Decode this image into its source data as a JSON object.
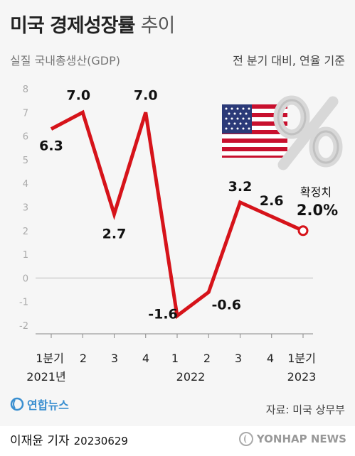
{
  "header": {
    "title_main": "미국 경제성장률",
    "title_sub": "추이",
    "subtitle_left": "실질 국내총생산(GDP)",
    "subtitle_right": "전 분기 대비, 연율 기준"
  },
  "chart_data": {
    "type": "line",
    "categories": [
      "1분기",
      "2",
      "3",
      "4",
      "1",
      "2",
      "3",
      "4",
      "1분기"
    ],
    "year_labels": [
      "2021년",
      "2022",
      "2023"
    ],
    "values": [
      6.3,
      7.0,
      2.7,
      7.0,
      -1.6,
      -0.6,
      3.2,
      2.6,
      2.0
    ],
    "value_labels": [
      "6.3",
      "7.0",
      "2.7",
      "7.0",
      "-1.6",
      "-0.6",
      "3.2",
      "2.6",
      "2.0%"
    ],
    "final_note": "확정치",
    "y_ticks": [
      "8",
      "7",
      "6",
      "5",
      "4",
      "3",
      "2",
      "1",
      "0",
      "-1",
      "-2"
    ],
    "ylim": [
      -2,
      8
    ],
    "grid": false,
    "line_color": "#d6131a",
    "marker_fill": "#ffffff"
  },
  "decor": {
    "flag": "us-flag-icon",
    "symbol": "percent-icon"
  },
  "footer": {
    "source": "자료: 미국 상무부",
    "logo_left": "연합뉴스",
    "reporter": "이재윤 기자",
    "date": "20230629",
    "logo_right": "YONHAP NEWS"
  }
}
